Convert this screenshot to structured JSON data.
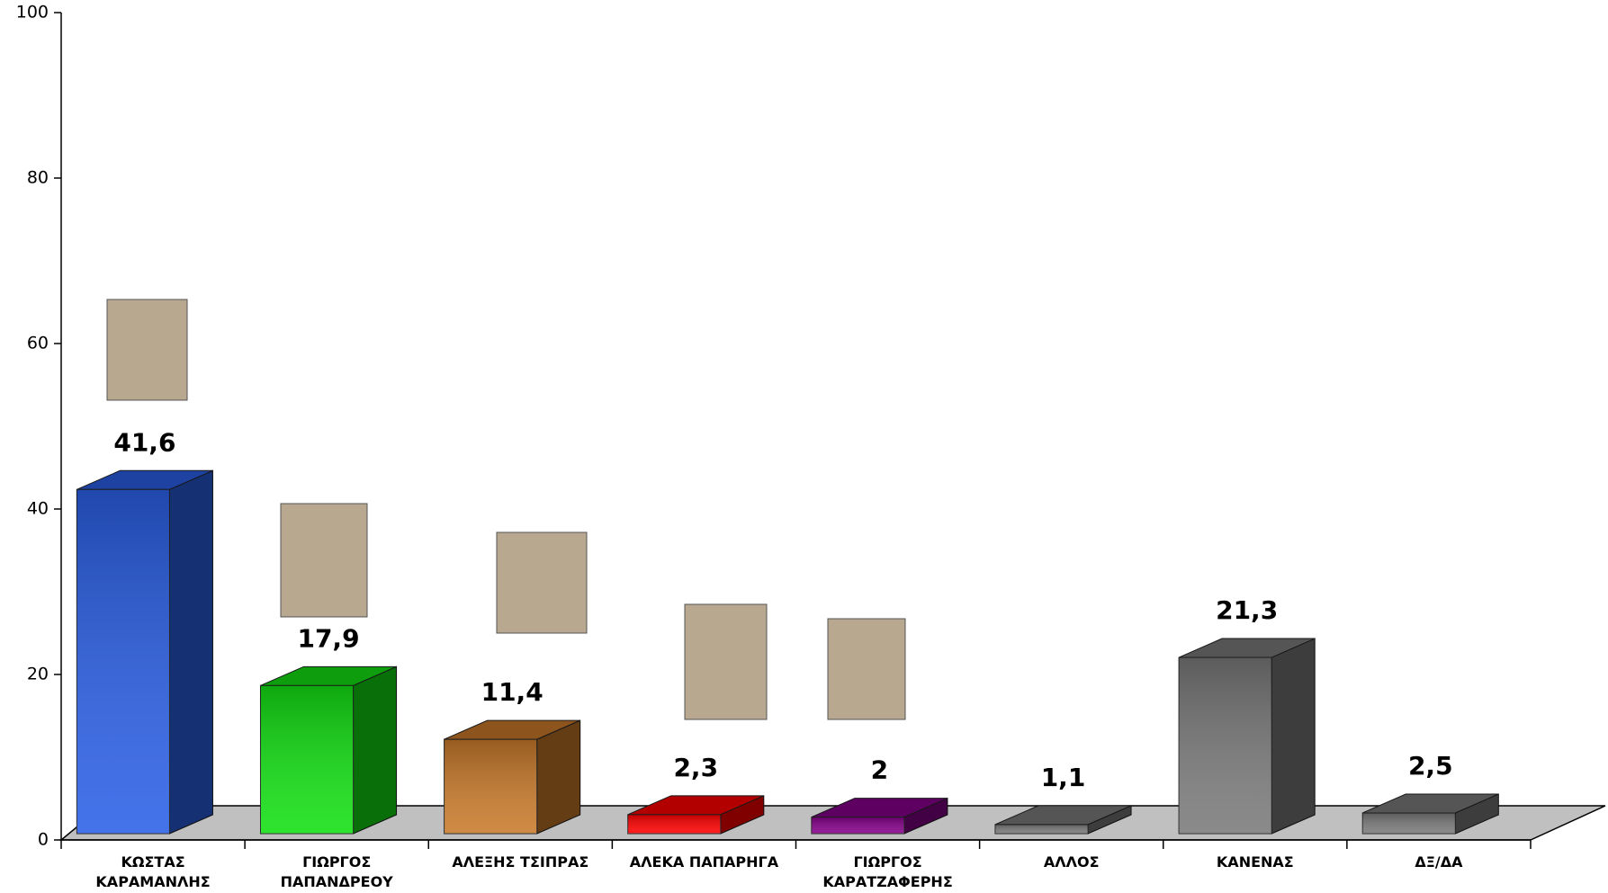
{
  "chart_data": {
    "type": "bar3d",
    "categories": [
      "ΚΩΣΤΑΣ\nΚΑΡΑΜΑΝΛΗΣ",
      "ΓΙΩΡΓΟΣ\nΠΑΠΑΝΔΡΕΟΥ",
      "ΑΛΕΞΗΣ ΤΣΙΠΡΑΣ",
      "ΑΛΕΚΑ ΠΑΠΑΡΗΓΑ",
      "ΓΙΩΡΓΟΣ\nΚΑΡΑΤΖΑΦΕΡΗΣ",
      "ΑΛΛΟΣ",
      "ΚΑΝΕΝΑΣ",
      "ΔΞ/ΔΑ"
    ],
    "values": [
      41.6,
      17.9,
      11.4,
      2.3,
      2,
      1.1,
      21.3,
      2.5
    ],
    "value_labels": [
      "41,6",
      "17,9",
      "11,4",
      "2,3",
      "2",
      "1,1",
      "21,3",
      "2,5"
    ],
    "colors": [
      "#2a5fe6",
      "#12e012",
      "#c97a2a",
      "#ff0000",
      "#85008a",
      "#7a7a7a",
      "#7a7a7a",
      "#7a7a7a"
    ],
    "ylim": [
      0,
      100
    ],
    "yticks": [
      0,
      20,
      40,
      60,
      80,
      100
    ]
  }
}
